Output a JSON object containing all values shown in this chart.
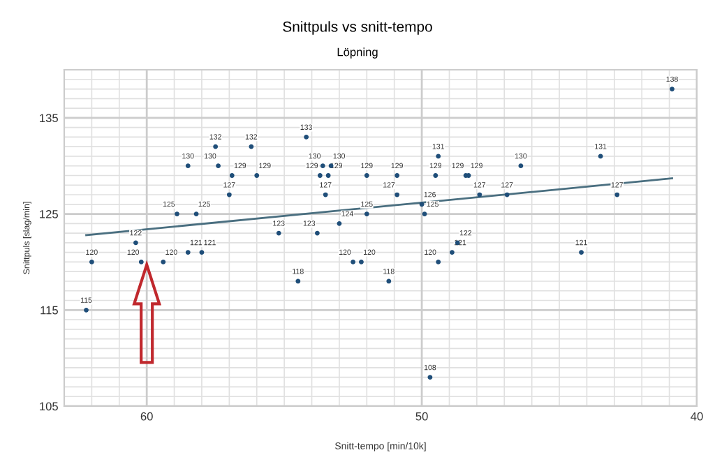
{
  "chart_data": {
    "type": "scatter",
    "title": "Snittpuls vs snitt-tempo",
    "subtitle": "Löpning",
    "xlabel": "Snitt-tempo [min/10k]",
    "ylabel": "Snittpuls [slag/min]",
    "xlim": [
      63,
      40
    ],
    "ylim": [
      105,
      140
    ],
    "xticks": [
      {
        "value": 63,
        "label": null
      },
      {
        "value": 62,
        "label": null
      },
      {
        "value": 61,
        "label": null
      },
      60,
      {
        "value": 59,
        "label": null
      },
      {
        "value": 58,
        "label": null
      },
      {
        "value": 57,
        "label": null
      },
      {
        "value": 56,
        "label": null
      },
      {
        "value": 55,
        "label": null
      },
      {
        "value": 54,
        "label": null
      },
      {
        "value": 53,
        "label": null
      },
      {
        "value": 52,
        "label": null
      },
      {
        "value": 51,
        "label": null
      },
      50,
      {
        "value": 49,
        "label": null
      },
      {
        "value": 48,
        "label": null
      },
      {
        "value": 47,
        "label": null
      },
      {
        "value": 46,
        "label": null
      },
      {
        "value": 45,
        "label": null
      },
      {
        "value": 44,
        "label": null
      },
      {
        "value": 43,
        "label": null
      },
      {
        "value": 42,
        "label": null
      },
      {
        "value": 41,
        "label": null
      },
      40
    ],
    "yticks": [
      105,
      {
        "value": 106,
        "label": null
      },
      {
        "value": 107,
        "label": null
      },
      {
        "value": 108,
        "label": null
      },
      {
        "value": 109,
        "label": null
      },
      {
        "value": 110,
        "label": null
      },
      {
        "value": 111,
        "label": null
      },
      {
        "value": 112,
        "label": null
      },
      {
        "value": 113,
        "label": null
      },
      {
        "value": 114,
        "label": null
      },
      115,
      {
        "value": 116,
        "label": null
      },
      {
        "value": 117,
        "label": null
      },
      {
        "value": 118,
        "label": null
      },
      {
        "value": 119,
        "label": null
      },
      {
        "value": 120,
        "label": null
      },
      {
        "value": 121,
        "label": null
      },
      {
        "value": 122,
        "label": null
      },
      {
        "value": 123,
        "label": null
      },
      {
        "value": 124,
        "label": null
      },
      125,
      {
        "value": 126,
        "label": null
      },
      {
        "value": 127,
        "label": null
      },
      {
        "value": 128,
        "label": null
      },
      {
        "value": 129,
        "label": null
      },
      {
        "value": 130,
        "label": null
      },
      {
        "value": 131,
        "label": null
      },
      {
        "value": 132,
        "label": null
      },
      {
        "value": 133,
        "label": null
      },
      {
        "value": 134,
        "label": null
      },
      135,
      {
        "value": 136,
        "label": null
      },
      {
        "value": 137,
        "label": null
      },
      {
        "value": 138,
        "label": null
      },
      {
        "value": 139,
        "label": null
      },
      {
        "value": 140,
        "label": null
      }
    ],
    "grid": true,
    "marker": "circle",
    "series": [
      {
        "color": "#1f4e79",
        "x": [
          62.2,
          62.0,
          60.4,
          60.2,
          59.4,
          58.5,
          58.0,
          58.9,
          58.2,
          55.2,
          54.5,
          53.8,
          53.0,
          52.5,
          52.2,
          57.5,
          56.2,
          58.5,
          57.4,
          56.9,
          56.0,
          57.0,
          54.2,
          53.6,
          53.3,
          53.7,
          53.4,
          53.5,
          52.0,
          52.0,
          50.9,
          50.9,
          50.0,
          49.9,
          49.4,
          49.5,
          48.4,
          48.3,
          47.9,
          46.9,
          46.4,
          43.5,
          42.9,
          40.9,
          51.2,
          49.4,
          48.9,
          48.7,
          44.2,
          49.7
        ],
        "values": [
          115,
          120,
          122,
          120,
          120,
          121,
          121,
          125,
          125,
          123,
          118,
          123,
          124,
          120,
          120,
          132,
          132,
          130,
          130,
          129,
          129,
          127,
          133,
          130,
          130,
          129,
          129,
          127,
          129,
          125,
          127,
          129,
          126,
          125,
          131,
          129,
          129,
          129,
          127,
          127,
          130,
          131,
          127,
          138,
          118,
          120,
          121,
          122,
          121,
          108
        ],
        "value_labels": [
          "115",
          "120",
          "122",
          "120",
          "120",
          "121",
          "121",
          "125",
          "125",
          "123",
          "118",
          "123",
          "124",
          "120",
          "120",
          "132",
          "132",
          "130",
          "130",
          "129",
          "129",
          "127",
          "133",
          "130",
          "130",
          "129",
          "129",
          "127",
          "129",
          "125",
          "127",
          "129",
          "126",
          "125",
          "131",
          "129",
          "129",
          "129",
          "127",
          "127",
          "130",
          "131",
          "127",
          "138",
          "118",
          "120",
          "121",
          "122",
          "121",
          "108"
        ]
      },
      {
        "type": "line",
        "color": "#4a6f80",
        "marker": "none",
        "x": [
          62.2,
          40.9
        ],
        "values": [
          122.8,
          128.7
        ]
      }
    ]
  }
}
